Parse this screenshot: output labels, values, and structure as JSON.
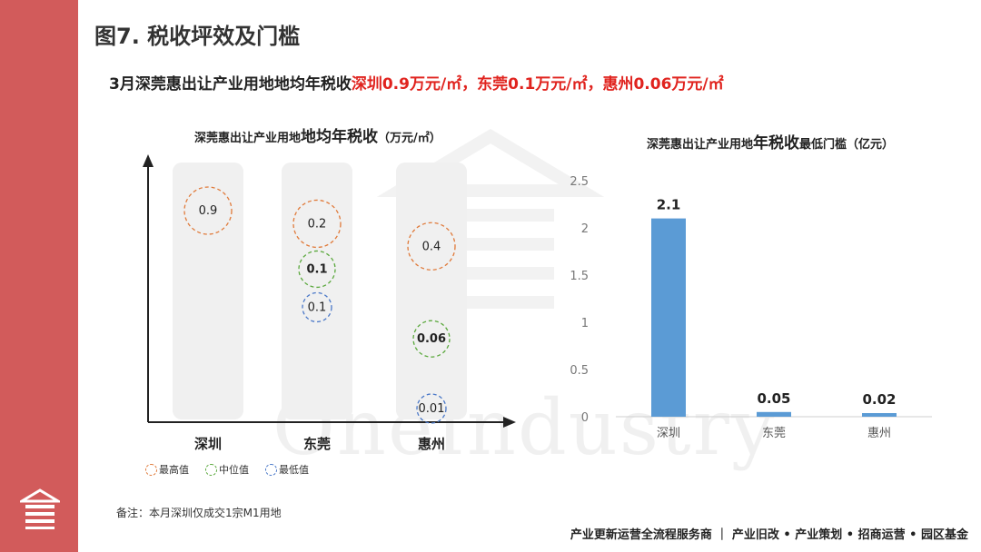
{
  "page_title": "图7. 税收坪效及门槛",
  "headline": {
    "prefix": "3月深莞惠出让产业用地地均年税收",
    "highlight": "深圳0.9万元/㎡，东莞0.1万元/㎡，惠州0.06万元/㎡"
  },
  "watermark": "OneIndustry",
  "colors": {
    "sidebar": "#d25b5b",
    "highlight_red": "#e0231e",
    "max_circle": "#e07a3a",
    "median_circle": "#5aa83c",
    "min_circle": "#4a78c8",
    "bar": "#5b9bd5"
  },
  "chart_data": [
    {
      "type": "scatter",
      "title_prefix": "深莞惠出让产业用地",
      "title_main": "地均年税收",
      "title_unit": "（万元/㎡）",
      "categories": [
        "深圳",
        "东莞",
        "惠州"
      ],
      "series": [
        {
          "name": "最高值",
          "key": "max",
          "values": [
            0.9,
            0.2,
            0.4
          ]
        },
        {
          "name": "中位值",
          "key": "median",
          "values": [
            null,
            0.1,
            0.06
          ]
        },
        {
          "name": "最低值",
          "key": "min",
          "values": [
            null,
            0.1,
            0.01
          ]
        }
      ],
      "labels": [
        {
          "category": 0,
          "series": "max",
          "text": "0.9",
          "bold": false
        },
        {
          "category": 1,
          "series": "max",
          "text": "0.2",
          "bold": false
        },
        {
          "category": 1,
          "series": "median",
          "text": "0.1",
          "bold": true
        },
        {
          "category": 1,
          "series": "min",
          "text": "0.1",
          "bold": false
        },
        {
          "category": 2,
          "series": "max",
          "text": "0.4",
          "bold": false
        },
        {
          "category": 2,
          "series": "median",
          "text": "0.06",
          "bold": true
        },
        {
          "category": 2,
          "series": "min",
          "text": "0.01",
          "bold": false
        }
      ],
      "legend": [
        "最高值",
        "中位值",
        "最低值"
      ]
    },
    {
      "type": "bar",
      "title_prefix": "深莞惠出让产业用地",
      "title_main": "年税收",
      "title_suffix": "最低门槛（亿元）",
      "categories": [
        "深圳",
        "东莞",
        "惠州"
      ],
      "values": [
        2.1,
        0.05,
        0.02
      ],
      "data_labels": [
        "2.1",
        "0.05",
        "0.02"
      ],
      "ylim": [
        0,
        2.5
      ],
      "yticks": [
        "0",
        "0.5",
        "1",
        "1.5",
        "2",
        "2.5"
      ],
      "grid": false
    }
  ],
  "note": "备注：本月深圳仅成交1宗M1用地",
  "footer": "产业更新运营全流程服务商 ｜ 产业旧改 • 产业策划 • 招商运营 • 园区基金"
}
